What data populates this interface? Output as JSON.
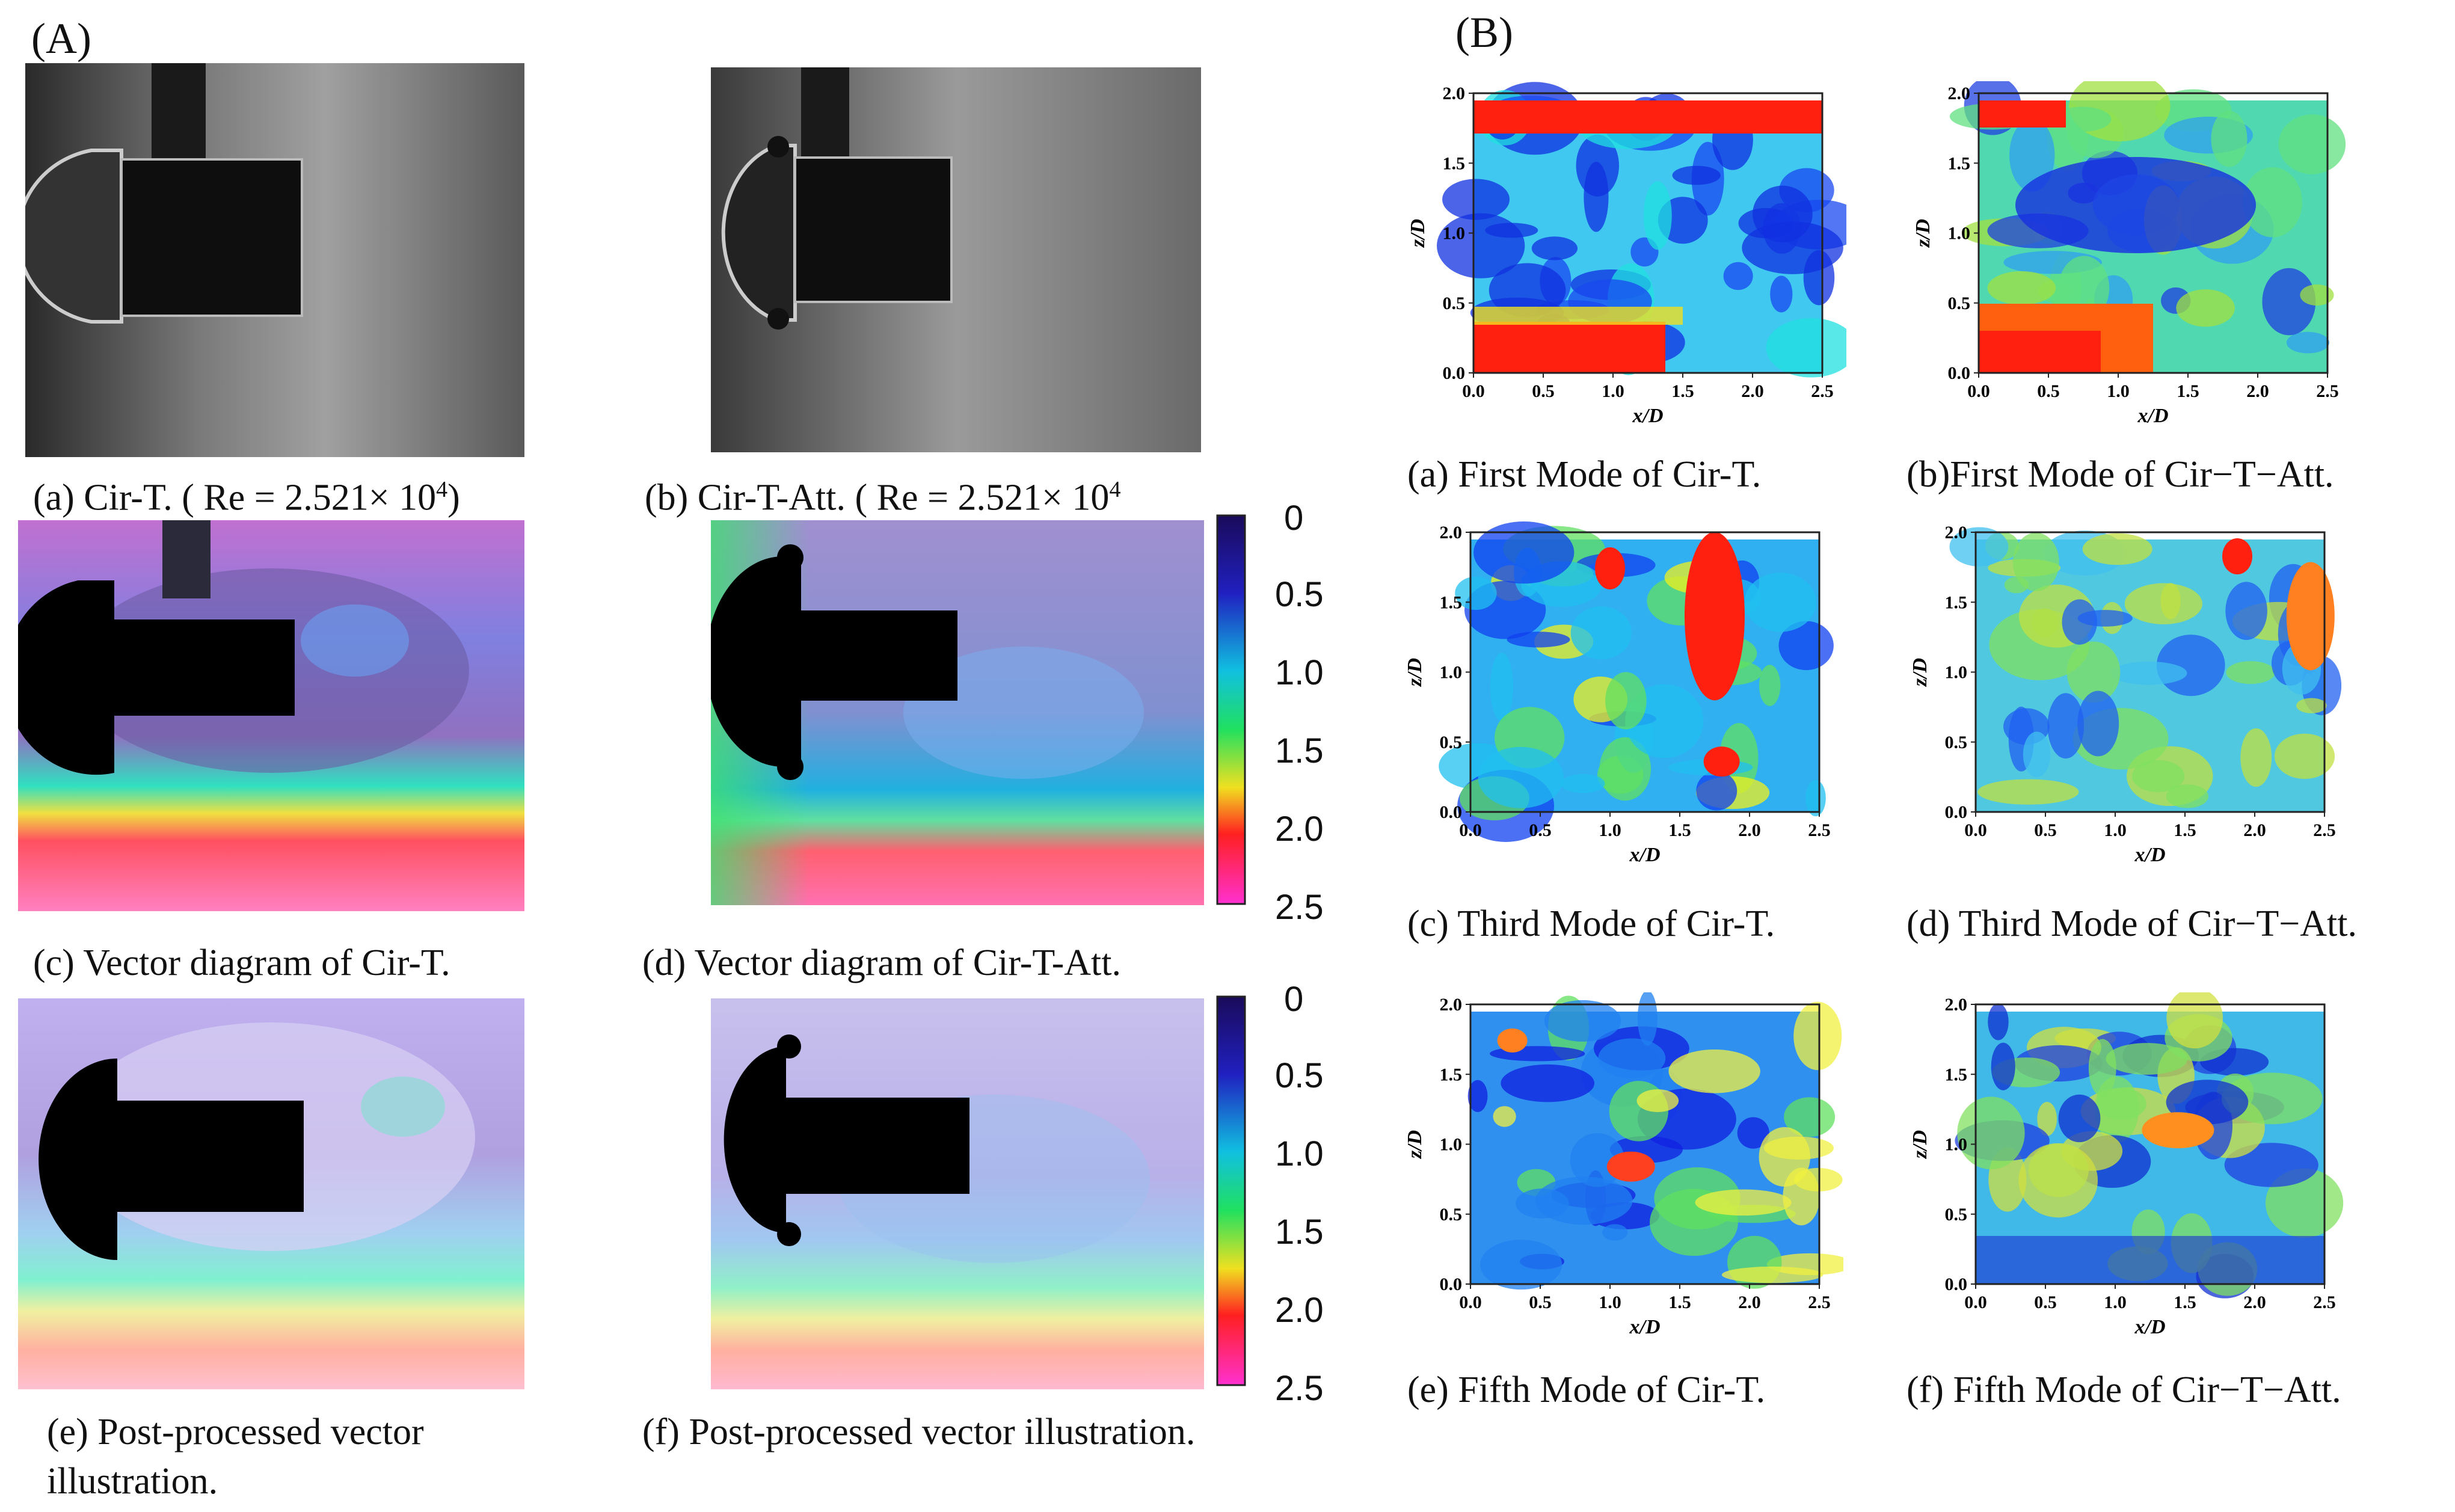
{
  "panel_A": {
    "letter": "(A)",
    "captions": {
      "a": "(a) Cir-T. ( Re = 2.521× 10",
      "a_sup": "4",
      "a_end": ")",
      "b": "(b) Cir-T-Att. ( Re = 2.521× 10",
      "b_sup": "4",
      "b_end": ")",
      "c": "(c) Vector diagram of Cir-T.",
      "d": "(d) Vector diagram of Cir-T-Att.",
      "e1": "(e) Post-processed vector",
      "e2": "illustration.",
      "f": "(f) Post-processed vector illustration."
    },
    "colorbar_ticks": [
      "0",
      "0.5",
      "1.0",
      "1.5",
      "2.0",
      "2.5"
    ],
    "colors": {
      "jet_low": "#1a0a6b",
      "jet_mid": "#10d0c0",
      "jet_high": "#ff2020",
      "magenta": "#ff40c0"
    }
  },
  "panel_B": {
    "letter": "(B)",
    "xlabel": "x/D",
    "ylabel": "z/D",
    "xticks": [
      "0.0",
      "0.5",
      "1.0",
      "1.5",
      "2.0",
      "2.5"
    ],
    "yticks": [
      "0.0",
      "0.5",
      "1.0",
      "1.5",
      "2.0"
    ],
    "captions": {
      "a": "(a) First Mode of Cir-T.",
      "b": "(b)First Mode of Cir−T−Att.",
      "c": "(c) Third Mode of Cir-T.",
      "d": "(d) Third Mode of Cir−T−Att.",
      "e": "(e) Fifth Mode of Cir-T.",
      "f": "(f) Fifth Mode of Cir−T−Att."
    }
  }
}
